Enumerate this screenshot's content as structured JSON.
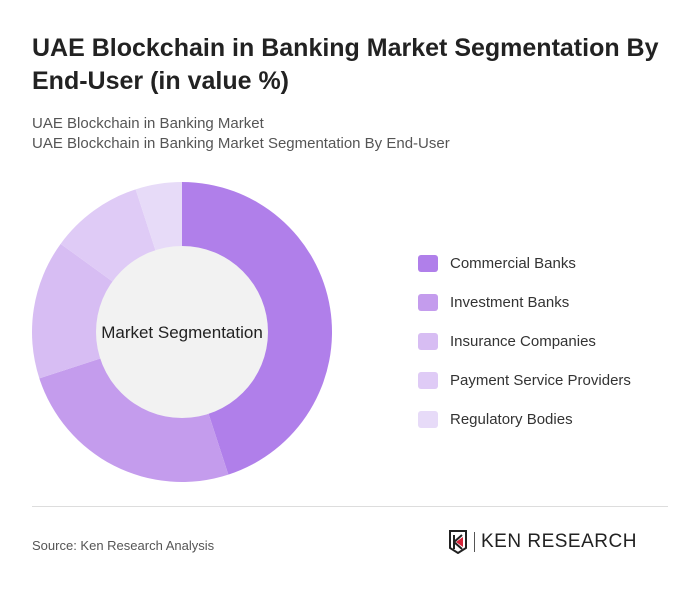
{
  "title": "UAE Blockchain in Banking Market Segmentation By End-User (in value %)",
  "subtitle1": "UAE Blockchain in Banking Market",
  "subtitle2": "UAE Blockchain in Banking Market Segmentation By End-User",
  "source": "Source: Ken Research Analysis",
  "logo_text": "KEN RESEARCH",
  "chart_data": {
    "type": "pie",
    "variant": "donut",
    "center_label": "Market Segmentation",
    "categories": [
      "Commercial Banks",
      "Investment Banks",
      "Insurance Companies",
      "Payment Service Providers",
      "Regulatory Bodies"
    ],
    "values": [
      45,
      25,
      15,
      10,
      5
    ],
    "colors": [
      "#b07fea",
      "#c49ced",
      "#d7bdf3",
      "#dfcbf6",
      "#e7dbf8"
    ],
    "legend_position": "right"
  }
}
